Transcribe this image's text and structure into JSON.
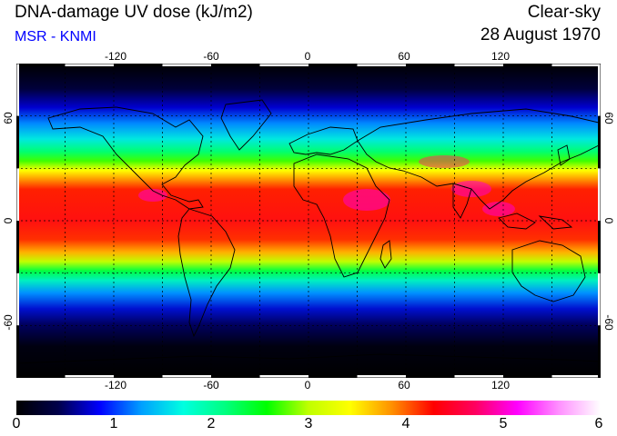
{
  "header": {
    "title": "DNA-damage UV dose (kJ/m2)",
    "subtitle": "MSR - KNMI",
    "mode": "Clear-sky",
    "date": "28 August 1970"
  },
  "map": {
    "projection": "equirectangular",
    "lon_range": [
      -180,
      180
    ],
    "lat_range": [
      -90,
      90
    ],
    "grid_lines": true,
    "grid_step_deg": 30,
    "lon_tick_labels": [
      "-120",
      "-60",
      "0",
      "60",
      "120"
    ],
    "lat_tick_labels": [
      "60",
      "0",
      "-60"
    ]
  },
  "colorbar": {
    "tick_labels": [
      "0",
      "1",
      "2",
      "3",
      "4",
      "5",
      "6"
    ],
    "min": 0,
    "max": 6,
    "colors": [
      "#000000",
      "#00004a",
      "#0000ff",
      "#00a0ff",
      "#00ffe0",
      "#00ff80",
      "#00ff00",
      "#c0ff00",
      "#ffff00",
      "#ff9000",
      "#ff0000",
      "#ff0060",
      "#ff00ff",
      "#ff90ff",
      "#ffffff"
    ]
  },
  "colors": {
    "subtitle": "#0000ff",
    "coastline": "#000000",
    "grid": "#000000",
    "frame": "#000000"
  }
}
